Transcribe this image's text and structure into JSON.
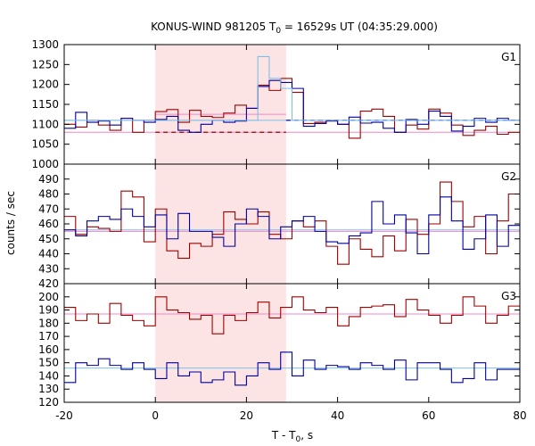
{
  "chart_data": {
    "type": "line",
    "title": "KONUS-WIND 981205 T",
    "title_sub": "0",
    "title_rest": " = 16529s UT (04:35:29.000)",
    "xlabel": "T - T",
    "xlabel_sub": "0",
    "xlabel_rest": ", s",
    "ylabel": "counts / sec",
    "xlim": [
      -20,
      80
    ],
    "x_ticks": [
      "-20",
      "0",
      "20",
      "40",
      "60",
      "80"
    ],
    "highlight_interval": [
      0,
      28.7
    ],
    "highlight_color": "#fde4e4",
    "bin_edges": [
      -20,
      -17.5,
      -15,
      -12.5,
      -10,
      -7.5,
      -5,
      -2.5,
      0,
      2.5,
      5,
      7.5,
      10,
      12.5,
      15,
      17.5,
      20,
      22.5,
      25,
      27.5,
      30,
      32.5,
      35,
      37.5,
      40,
      42.5,
      45,
      47.5,
      50,
      52.5,
      55,
      57.5,
      60,
      62.5,
      65,
      67.5,
      70,
      72.5,
      75,
      77.5,
      80
    ],
    "panels": [
      {
        "label": "G1",
        "ylim": [
          1000,
          1300
        ],
        "y_ticks": [
          "1300",
          "1250",
          "1200",
          "1150",
          "1100",
          "1050",
          "1000"
        ],
        "series": [
          {
            "color": "#a00000",
            "values": [
              1100,
              1093,
              1110,
              1098,
              1085,
              1115,
              1080,
              1110,
              1132,
              1137,
              1105,
              1135,
              1120,
              1117,
              1128,
              1148,
              1140,
              1198,
              1185,
              1215,
              1180,
              1102,
              1105,
              1110,
              1100,
              1065,
              1133,
              1138,
              1120,
              1080,
              1098,
              1088,
              1138,
              1128,
              1098,
              1072,
              1085,
              1095,
              1075,
              1080
            ]
          },
          {
            "color": "#0000a0",
            "values": [
              1090,
              1130,
              1105,
              1108,
              1098,
              1115,
              1110,
              1105,
              1112,
              1120,
              1085,
              1080,
              1100,
              1110,
              1105,
              1108,
              1140,
              1195,
              1210,
              1205,
              1190,
              1095,
              1102,
              1108,
              1100,
              1118,
              1103,
              1105,
              1090,
              1080,
              1112,
              1100,
              1133,
              1120,
              1083,
              1095,
              1115,
              1105,
              1115,
              1110
            ]
          },
          {
            "color": "#7fbfe6",
            "values": [
              1110,
              1110,
              1110,
              1110,
              1110,
              1110,
              1110,
              1110,
              1110,
              1110,
              1110,
              1110,
              1110,
              1110,
              1110,
              1110,
              1110,
              1270,
              1215,
              1190,
              1110,
              1110,
              1110,
              1110,
              1110,
              1110,
              1110,
              1110,
              1110,
              1110,
              1110,
              1110,
              1110,
              1110,
              1110,
              1110,
              1110,
              1110,
              1110,
              1110
            ]
          }
        ],
        "backgrounds": [
          {
            "color": "#ee88cc",
            "y": 1080
          },
          {
            "color": "#7fbfe6",
            "y": 1110
          }
        ],
        "dashed_segments": [
          {
            "color": "#a00000",
            "x": [
              0,
              28.7
            ],
            "y": 1080
          },
          {
            "color": "#0000a0",
            "x": [
              28.7,
              80
            ],
            "y": 1110
          }
        ],
        "flat_segments": [
          {
            "color": "#ee88cc",
            "x": [
              0,
              28.7
            ],
            "y": 1125
          }
        ]
      },
      {
        "label": "G2",
        "ylim": [
          420,
          500
        ],
        "y_ticks": [
          "490",
          "480",
          "470",
          "460",
          "450",
          "440",
          "430",
          "420"
        ],
        "series": [
          {
            "color": "#a00000",
            "values": [
              465,
              453,
              458,
              457,
              455,
              482,
              478,
              448,
              470,
              442,
              437,
              447,
              445,
              453,
              468,
              463,
              460,
              468,
              453,
              450,
              462,
              458,
              462,
              445,
              433,
              450,
              443,
              438,
              452,
              442,
              463,
              453,
              460,
              488,
              475,
              458,
              465,
              440,
              462,
              480
            ]
          },
          {
            "color": "#0000a0",
            "values": [
              456,
              452,
              462,
              465,
              463,
              470,
              465,
              458,
              466,
              450,
              467,
              455,
              455,
              451,
              445,
              460,
              470,
              465,
              450,
              458,
              462,
              465,
              455,
              448,
              447,
              452,
              454,
              475,
              460,
              466,
              454,
              440,
              466,
              478,
              462,
              443,
              450,
              466,
              445,
              459
            ]
          }
        ],
        "backgrounds": [
          {
            "color": "#ee88cc",
            "y": 455
          },
          {
            "color": "#7fbfe6",
            "y": 456
          }
        ],
        "dashed_segments": [],
        "flat_segments": []
      },
      {
        "label": "G3",
        "ylim": [
          120,
          210
        ],
        "y_ticks": [
          "200",
          "190",
          "180",
          "170",
          "160",
          "150",
          "140",
          "130",
          "120"
        ],
        "series": [
          {
            "color": "#a00000",
            "values": [
              192,
              182,
              187,
              180,
              195,
              186,
              182,
              178,
              200,
              190,
              188,
              183,
              186,
              172,
              186,
              182,
              188,
              196,
              184,
              192,
              200,
              190,
              188,
              192,
              178,
              185,
              192,
              193,
              194,
              185,
              198,
              190,
              186,
              180,
              186,
              200,
              193,
              180,
              186,
              193
            ]
          },
          {
            "color": "#0000a0",
            "values": [
              135,
              150,
              148,
              153,
              148,
              145,
              150,
              145,
              138,
              150,
              140,
              143,
              135,
              137,
              143,
              133,
              140,
              150,
              145,
              158,
              140,
              152,
              145,
              148,
              147,
              145,
              150,
              148,
              145,
              152,
              137,
              150,
              150,
              145,
              135,
              138,
              150,
              137,
              145,
              145
            ]
          }
        ],
        "backgrounds": [
          {
            "color": "#ee88cc",
            "y": 187
          },
          {
            "color": "#7fbfe6",
            "y": 146
          }
        ],
        "dashed_segments": [],
        "flat_segments": []
      }
    ]
  }
}
